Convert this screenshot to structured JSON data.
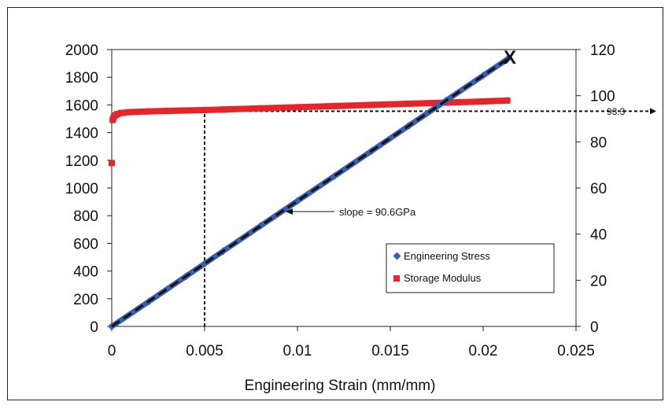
{
  "chart_data": {
    "type": "line",
    "xlabel": "Engineering Strain (mm/mm)",
    "xlim": [
      0,
      0.025
    ],
    "x_ticks": [
      0,
      0.005,
      0.01,
      0.015,
      0.02,
      0.025
    ],
    "x_tick_labels": [
      "0",
      "0.005",
      "0.01",
      "0.015",
      "0.02",
      "0.025"
    ],
    "ylim": [
      0,
      2000
    ],
    "y_ticks": [
      0,
      200,
      400,
      600,
      800,
      1000,
      1200,
      1400,
      1600,
      1800,
      2000
    ],
    "y_tick_labels": [
      "0",
      "200",
      "400",
      "600",
      "800",
      "1000",
      "1200",
      "1400",
      "1600",
      "1800",
      "2000"
    ],
    "y2lim": [
      0,
      120
    ],
    "y2_ticks": [
      0,
      20,
      40,
      60,
      80,
      100,
      120
    ],
    "y2_tick_labels": [
      "0",
      "20",
      "40",
      "60",
      "80",
      "100",
      "120"
    ],
    "grid": false,
    "legend_position": "lower-right",
    "series": [
      {
        "name": "Engineering Stress",
        "axis": "left",
        "marker": "diamond",
        "color": "#3a5fb0",
        "x": [
          0,
          0.002,
          0.004,
          0.005,
          0.006,
          0.008,
          0.01,
          0.012,
          0.014,
          0.016,
          0.018,
          0.02,
          0.0213
        ],
        "y": [
          0,
          180,
          362,
          453,
          544,
          725,
          906,
          1087,
          1268,
          1450,
          1631,
          1812,
          1930
        ]
      },
      {
        "name": "Storage Modulus",
        "axis": "right",
        "marker": "square",
        "color": "#e8242a",
        "x": [
          0,
          5e-05,
          0.0001,
          0.0002,
          0.0003,
          0.0005,
          0.001,
          0.002,
          0.003,
          0.004,
          0.005,
          0.006,
          0.008,
          0.01,
          0.012,
          0.014,
          0.016,
          0.018,
          0.02,
          0.0213
        ],
        "y": [
          70.8,
          89.5,
          90.5,
          91.5,
          92.0,
          92.5,
          92.9,
          93.2,
          93.4,
          93.6,
          93.8,
          94.0,
          94.5,
          95.0,
          95.5,
          96.0,
          96.5,
          97.0,
          97.5,
          97.9
        ]
      }
    ],
    "fit_line": {
      "x": [
        0,
        0.0215
      ],
      "y": [
        0,
        1948
      ]
    },
    "annotations": {
      "slope_label": "slope = 90.6GPa",
      "modulus_label": "93.3",
      "end_marker": "X"
    },
    "reference_lines": {
      "strain": 0.005,
      "modulus": 93.3
    }
  }
}
